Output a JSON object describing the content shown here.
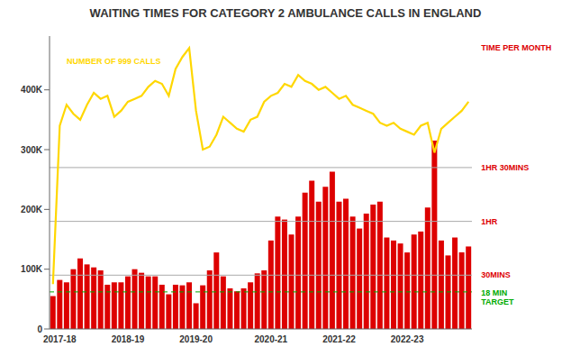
{
  "chart_data": {
    "type": "bar",
    "title": "WAITING TIMES FOR CATEGORY 2 AMBULANCE CALLS IN ENGLAND",
    "categories": [
      null,
      "2017-18",
      null,
      null,
      null,
      null,
      null,
      null,
      null,
      null,
      null,
      "2018-19",
      null,
      null,
      null,
      null,
      null,
      null,
      null,
      null,
      null,
      "2019-20",
      null,
      null,
      null,
      null,
      null,
      null,
      null,
      null,
      null,
      null,
      "2020-21",
      null,
      null,
      null,
      null,
      null,
      null,
      null,
      null,
      null,
      "2021-22",
      null,
      null,
      null,
      null,
      null,
      null,
      null,
      null,
      null,
      "2022-23",
      null,
      null,
      null,
      null,
      null,
      null,
      null,
      null,
      null
    ],
    "series": [
      {
        "type": "bar",
        "color": "#dd0000",
        "values": [
          55000,
          82000,
          78000,
          100000,
          118000,
          108000,
          103000,
          98000,
          74000,
          78000,
          78000,
          88000,
          100000,
          94000,
          88000,
          88000,
          74000,
          58000,
          74000,
          73000,
          78000,
          43000,
          73000,
          98000,
          128000,
          88000,
          68000,
          63000,
          68000,
          78000,
          93000,
          98000,
          148000,
          188000,
          183000,
          158000,
          188000,
          228000,
          248000,
          213000,
          238000,
          263000,
          213000,
          218000,
          188000,
          168000,
          193000,
          208000,
          213000,
          153000,
          148000,
          143000,
          128000,
          158000,
          163000,
          203000,
          315000,
          148000,
          123000,
          153000,
          128000,
          138000
        ]
      },
      {
        "type": "line",
        "color": "#ffd700",
        "values": [
          75000,
          340000,
          375000,
          360000,
          350000,
          375000,
          395000,
          385000,
          390000,
          355000,
          365000,
          380000,
          385000,
          390000,
          405000,
          415000,
          410000,
          390000,
          435000,
          455000,
          470000,
          365000,
          300000,
          305000,
          325000,
          355000,
          345000,
          335000,
          330000,
          350000,
          355000,
          380000,
          390000,
          395000,
          410000,
          405000,
          425000,
          415000,
          410000,
          400000,
          405000,
          395000,
          385000,
          390000,
          375000,
          370000,
          365000,
          360000,
          345000,
          340000,
          345000,
          335000,
          330000,
          325000,
          340000,
          345000,
          295000,
          335000,
          345000,
          355000,
          365000,
          380000
        ]
      }
    ],
    "ylim": [
      0,
      490000
    ],
    "yticks": [
      0,
      {
        "value": 100000,
        "label": "100K"
      },
      {
        "value": 200000,
        "label": "200K"
      },
      {
        "value": 300000,
        "label": "300K"
      },
      {
        "value": 400000,
        "label": "400K"
      }
    ],
    "grid": false,
    "reference_lines": [
      {
        "y": 90000,
        "label": "30MINS",
        "color": "#dd0000"
      },
      {
        "y": 180000,
        "label": "1HR",
        "color": "#dd0000"
      },
      {
        "y": 270000,
        "label": "1HR 30MINS",
        "color": "#dd0000"
      },
      {
        "y": 62000,
        "label": "18 MIN\nTARGET",
        "color": "#00aa00",
        "line_style": "dashed"
      }
    ],
    "annotations": [
      {
        "text": "TIME PER MONTH",
        "y": 470400,
        "color": "#dd0000"
      },
      {
        "text": "NUMBER OF 999 CALLS",
        "x": 2,
        "y": 448350,
        "color": "#ffd700"
      }
    ]
  }
}
